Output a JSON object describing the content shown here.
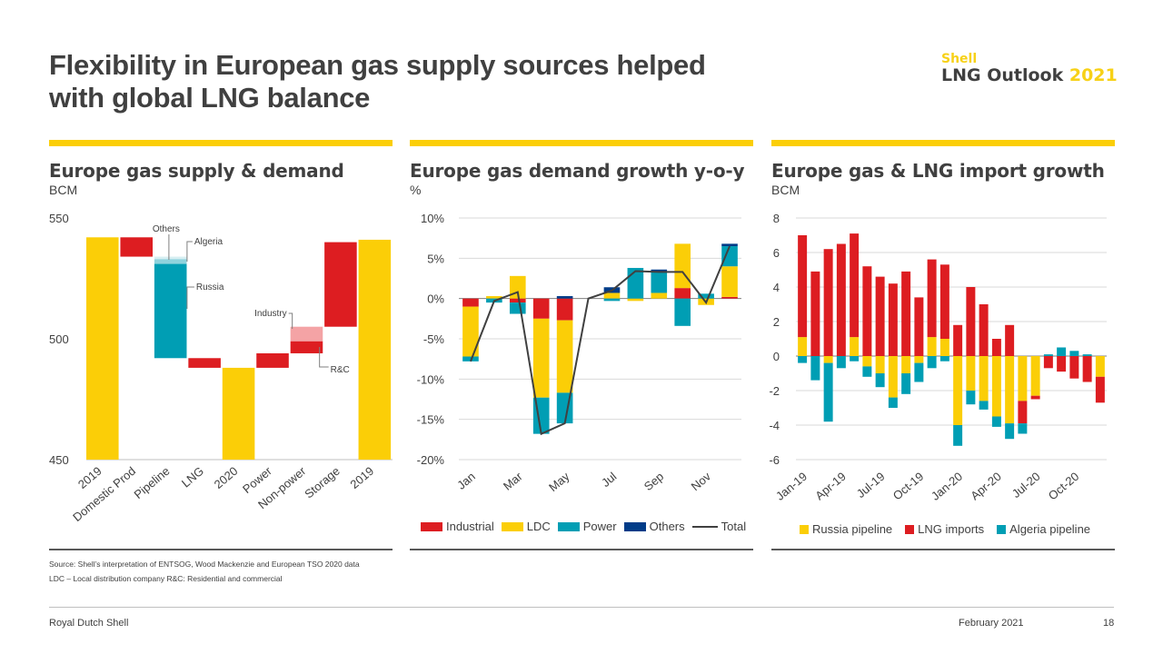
{
  "header": {
    "title_line1": "Flexibility in European gas supply sources helped",
    "title_line2": "with global LNG balance",
    "brand_shell": "Shell",
    "brand_name": "LNG Outlook",
    "brand_year": "2021"
  },
  "colors": {
    "yellow": "#fbce07",
    "red": "#dd1d21",
    "teal": "#009eb4",
    "light_teal": "#8fd3dd",
    "light_red": "#f4a3a5",
    "navy": "#003c88",
    "dark": "#404040",
    "grid": "#d9d9d9"
  },
  "panels": {
    "p1": {
      "title": "Europe gas supply & demand",
      "unit": "BCM"
    },
    "p2": {
      "title": "Europe gas demand growth y-o-y",
      "unit": "%"
    },
    "p3": {
      "title": "Europe gas & LNG import growth",
      "unit": "BCM"
    }
  },
  "chart_data": [
    {
      "type": "bar",
      "subtype": "waterfall",
      "title": "Europe gas supply & demand",
      "ylabel": "BCM",
      "ylim": [
        450,
        550
      ],
      "yticks": [
        450,
        500,
        550
      ],
      "categories": [
        "2019",
        "Domestic Prod",
        "Pipeline",
        "LNG",
        "2020",
        "Power",
        "Non-power",
        "Storage",
        "2019"
      ],
      "bars": [
        {
          "category": "2019",
          "base": 450,
          "top": 542,
          "kind": "total"
        },
        {
          "category": "Domestic Prod",
          "base": 534,
          "top": 542,
          "kind": "decrease"
        },
        {
          "category": "Pipeline",
          "base": 492,
          "top": 534,
          "kind": "decrease",
          "segments": [
            {
              "name": "Russia",
              "from": 492,
              "to": 531
            },
            {
              "name": "Algeria",
              "from": 531,
              "to": 533
            },
            {
              "name": "Others",
              "from": 533,
              "to": 534
            }
          ]
        },
        {
          "category": "LNG",
          "base": 488,
          "top": 492,
          "kind": "decrease"
        },
        {
          "category": "2020",
          "base": 450,
          "top": 488,
          "kind": "total"
        },
        {
          "category": "Power",
          "base": 488,
          "top": 494,
          "kind": "increase"
        },
        {
          "category": "Non-power",
          "base": 494,
          "top": 505,
          "kind": "increase",
          "segments": [
            {
              "name": "R&C",
              "from": 494,
              "to": 499
            },
            {
              "name": "Industry",
              "from": 499,
              "to": 505
            }
          ]
        },
        {
          "category": "Storage",
          "base": 505,
          "top": 540,
          "kind": "increase"
        },
        {
          "category": "2019",
          "base": 450,
          "top": 541,
          "kind": "total"
        }
      ],
      "annotations": [
        "Others",
        "Algeria",
        "Russia",
        "Industry",
        "R&C"
      ]
    },
    {
      "type": "bar",
      "subtype": "stacked-with-line",
      "title": "Europe gas demand growth y-o-y",
      "ylabel": "%",
      "ylim": [
        -20,
        10
      ],
      "yticks": [
        -20,
        -15,
        -10,
        -5,
        0,
        5,
        10
      ],
      "ytick_labels": [
        "-20%",
        "-15%",
        "-10%",
        "-5%",
        "0%",
        "5%",
        "10%"
      ],
      "categories": [
        "Jan",
        "Feb",
        "Mar",
        "Apr",
        "May",
        "Jun",
        "Jul",
        "Aug",
        "Sep",
        "Oct",
        "Nov",
        "Dec"
      ],
      "xtick_labels": [
        "Jan",
        "Mar",
        "May",
        "Jul",
        "Sep",
        "Nov"
      ],
      "series": [
        {
          "name": "Industrial",
          "values": [
            -1.0,
            0,
            -0.5,
            -2.5,
            -2.7,
            0,
            0,
            0,
            0,
            1.3,
            0,
            0.2
          ]
        },
        {
          "name": "LDC",
          "values": [
            -6.2,
            0.3,
            2.8,
            -9.8,
            -9.0,
            0,
            0.7,
            -0.3,
            0.7,
            5.5,
            -0.8,
            3.8
          ]
        },
        {
          "name": "Power",
          "values": [
            -0.6,
            -0.5,
            -1.4,
            -4.5,
            -3.8,
            0,
            -0.3,
            3.8,
            2.7,
            -3.4,
            0.6,
            2.5
          ]
        },
        {
          "name": "Others",
          "values": [
            0,
            0,
            0,
            0,
            0.3,
            0,
            0.7,
            0,
            0.2,
            0,
            0,
            0.3
          ]
        }
      ],
      "total": [
        -7.8,
        -0.3,
        0.8,
        -16.8,
        -15.5,
        0,
        1.0,
        3.4,
        3.3,
        3.3,
        -0.5,
        6.5
      ],
      "legend": [
        "Industrial",
        "LDC",
        "Power",
        "Others",
        "Total"
      ]
    },
    {
      "type": "bar",
      "subtype": "stacked",
      "title": "Europe gas & LNG import growth",
      "ylabel": "BCM",
      "ylim": [
        -6,
        8
      ],
      "yticks": [
        -6,
        -4,
        -2,
        0,
        2,
        4,
        6,
        8
      ],
      "ytick_labels": [
        "-6",
        "-4",
        "-2",
        "0",
        "2",
        "4",
        "6",
        "8"
      ],
      "categories": [
        "Jan-19",
        "Feb-19",
        "Mar-19",
        "Apr-19",
        "May-19",
        "Jun-19",
        "Jul-19",
        "Aug-19",
        "Sep-19",
        "Oct-19",
        "Nov-19",
        "Dec-19",
        "Jan-20",
        "Feb-20",
        "Mar-20",
        "Apr-20",
        "May-20",
        "Jun-20",
        "Jul-20",
        "Aug-20",
        "Sep-20",
        "Oct-20",
        "Nov-20",
        "Dec-20"
      ],
      "xtick_labels": [
        "Jan-19",
        "Apr-19",
        "Jul-19",
        "Oct-19",
        "Jan-20",
        "Apr-20",
        "Jul-20",
        "Oct-20"
      ],
      "series": [
        {
          "name": "Russia pipeline",
          "values": [
            1.1,
            0,
            -0.4,
            0,
            1.1,
            -0.6,
            -1.0,
            -2.4,
            -1.0,
            -0.4,
            1.1,
            1.0,
            -4.0,
            -2.0,
            -2.6,
            -3.5,
            -3.9,
            -2.6,
            -2.3,
            0,
            0,
            0,
            0,
            -1.2
          ]
        },
        {
          "name": "LNG imports",
          "values": [
            5.9,
            4.9,
            6.2,
            6.5,
            6.0,
            5.2,
            4.6,
            4.2,
            4.9,
            3.4,
            4.5,
            4.3,
            1.8,
            4.0,
            3.0,
            1.0,
            1.8,
            -1.3,
            -0.2,
            -0.7,
            -0.9,
            -1.3,
            -1.5,
            -1.5
          ]
        },
        {
          "name": "Algeria pipeline",
          "values": [
            -0.4,
            -1.4,
            -3.4,
            -0.7,
            -0.3,
            -0.6,
            -0.8,
            -0.6,
            -1.2,
            -1.1,
            -0.7,
            -0.3,
            -1.2,
            -0.8,
            -0.5,
            -0.6,
            -0.9,
            -0.6,
            0,
            0.1,
            0.5,
            0.3,
            0.1,
            0
          ]
        }
      ],
      "legend": [
        "Russia pipeline",
        "LNG imports",
        "Algeria pipeline"
      ]
    }
  ],
  "legend2": {
    "industrial": "Industrial",
    "ldc": "LDC",
    "power": "Power",
    "others": "Others",
    "total": "Total"
  },
  "legend3": {
    "russia": "Russia pipeline",
    "lng": "LNG imports",
    "algeria": "Algeria pipeline"
  },
  "source": {
    "line1": "Source: Shell’s interpretation of ENTSOG, Wood Mackenzie and European TSO 2020 data",
    "line2": "LDC – Local distribution company   R&C: Residential and commercial"
  },
  "footer": {
    "company": "Royal Dutch Shell",
    "date": "February 2021",
    "page": "18"
  }
}
